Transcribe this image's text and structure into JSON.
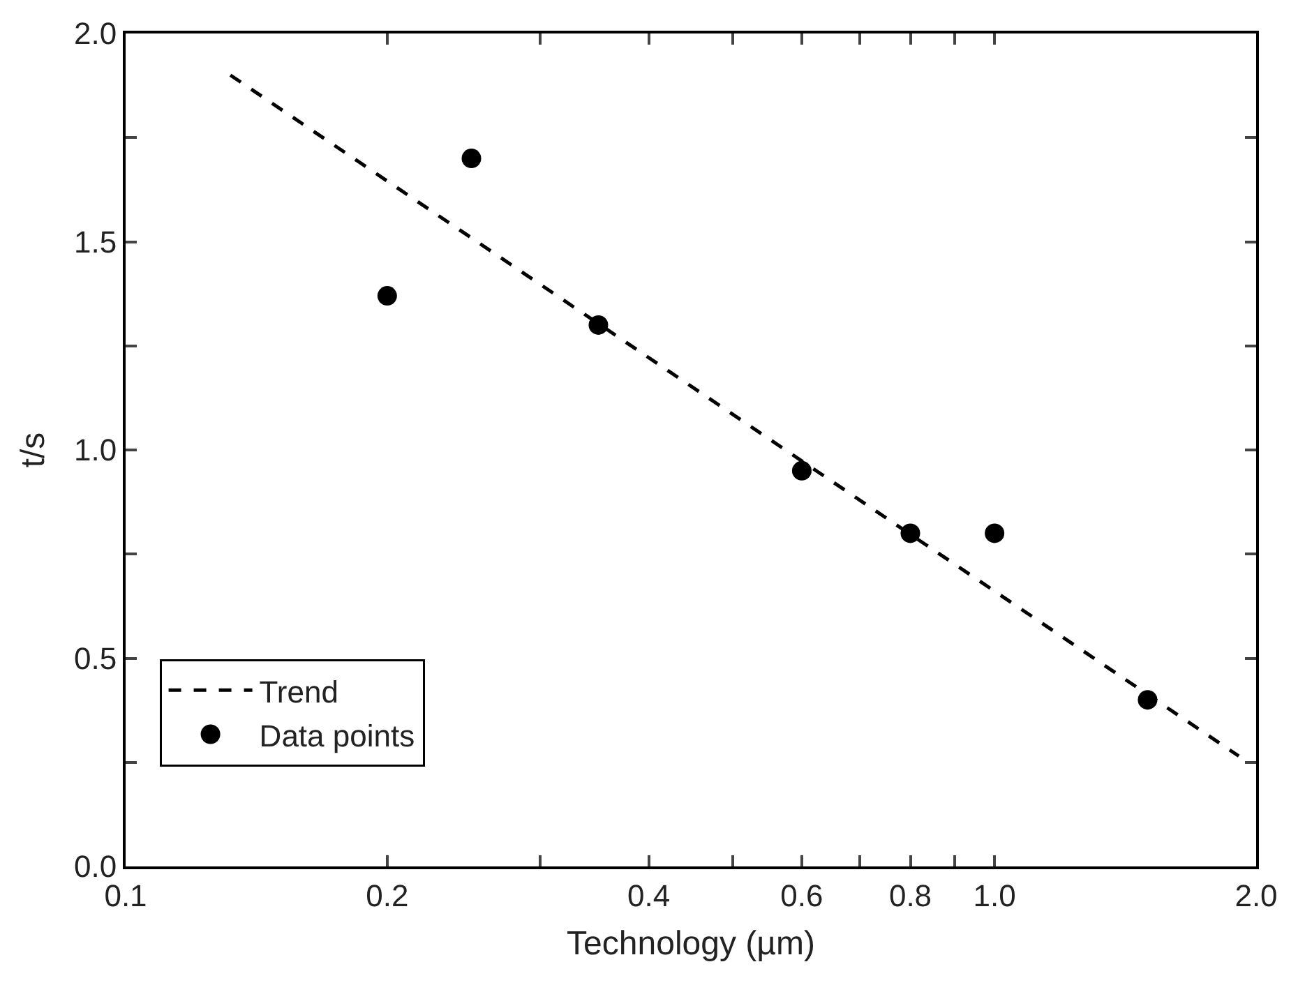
{
  "chart_data": {
    "type": "scatter",
    "xlabel": "Technology (µm)",
    "ylabel": "t/s",
    "log": "x",
    "xlim": [
      0.1,
      2.0
    ],
    "xticks": [
      {
        "value": 0.1,
        "label": "0.1"
      },
      {
        "value": 0.2,
        "label": "0.2"
      },
      {
        "value": 0.3,
        "label": null
      },
      {
        "value": 0.4,
        "label": "0.4"
      },
      {
        "value": 0.5,
        "label": null
      },
      {
        "value": 0.6,
        "label": "0.6"
      },
      {
        "value": 0.7,
        "label": null
      },
      {
        "value": 0.8,
        "label": "0.8"
      },
      {
        "value": 0.9,
        "label": null
      },
      {
        "value": 1.0,
        "label": "1.0"
      },
      {
        "value": 2.0,
        "label": "2.0"
      }
    ],
    "ylim": [
      0,
      2.0
    ],
    "yticks": [
      {
        "value": 0,
        "label": "0.0"
      },
      {
        "value": 0.25,
        "label": null
      },
      {
        "value": 0.5,
        "label": "0.5"
      },
      {
        "value": 0.75,
        "label": null
      },
      {
        "value": 1.0,
        "label": "1.0"
      },
      {
        "value": 1.25,
        "label": null
      },
      {
        "value": 1.5,
        "label": "1.5"
      },
      {
        "value": 1.75,
        "label": null
      },
      {
        "value": 2.0,
        "label": "2.0"
      }
    ],
    "grid": false,
    "legend": "bottom left",
    "series": [
      {
        "name": "Trend",
        "type": "line",
        "line_style": "dashed",
        "marker": "none",
        "color": "#000000",
        "x": [
          0.132,
          1.91
        ],
        "values": [
          1.9,
          0.265
        ]
      },
      {
        "name": "Data points",
        "marker": "circle",
        "color": "#000000",
        "x": [
          0.2,
          0.25,
          0.35,
          0.6,
          0.8,
          1.0,
          1.5
        ],
        "values": [
          1.37,
          1.7,
          1.3,
          0.95,
          0.8,
          0.8,
          0.4
        ]
      }
    ]
  }
}
